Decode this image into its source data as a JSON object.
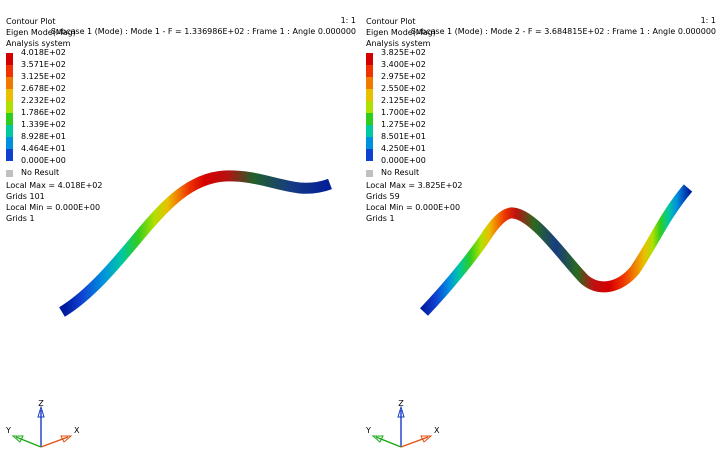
{
  "views": [
    {
      "title": "Contour Plot",
      "result_type": "Eigen Mode(Mag)",
      "system": "Analysis system",
      "scale": "1: 1",
      "subcase": "Subcase 1 (Mode) : Mode 1 - F = 1.336986E+02 : Frame 1 : Angle 0.000000",
      "legend": [
        "4.018E+02",
        "3.571E+02",
        "3.125E+02",
        "2.678E+02",
        "2.232E+02",
        "1.786E+02",
        "1.339E+02",
        "8.928E+01",
        "4.464E+01",
        "0.000E+00"
      ],
      "no_result": "No Result",
      "local_max": "Local Max = 4.018E+02",
      "grids_max": "Grids 101",
      "local_min": "Local Min = 0.000E+00",
      "grids_min": "Grids 1",
      "axes": {
        "z": "Z",
        "y": "Y",
        "x": "X"
      }
    },
    {
      "title": "Contour Plot",
      "result_type": "Eigen Mode(Mag)",
      "system": "Analysis system",
      "scale": "1: 1",
      "subcase": "Subcase 1 (Mode) : Mode 2 - F = 3.684815E+02 : Frame 1 : Angle 0.000000",
      "legend": [
        "3.825E+02",
        "3.400E+02",
        "2.975E+02",
        "2.550E+02",
        "2.125E+02",
        "1.700E+02",
        "1.275E+02",
        "8.501E+01",
        "4.250E+01",
        "0.000E+00"
      ],
      "no_result": "No Result",
      "local_max": "Local Max = 3.825E+02",
      "grids_max": "Grids 59",
      "local_min": "Local Min = 0.000E+00",
      "grids_min": "Grids 1",
      "axes": {
        "z": "Z",
        "y": "Y",
        "x": "X"
      }
    }
  ],
  "legend_colors": [
    "#d40000",
    "#ee3300",
    "#f07a00",
    "#e8c000",
    "#b0e000",
    "#30cc20",
    "#00c8a0",
    "#0090e0",
    "#1040d0",
    "#001a9e"
  ],
  "no_result_color": "#c0c0c0",
  "axis_colors": {
    "z": "#1a3cc8",
    "x": "#e05010",
    "y": "#18a818"
  }
}
